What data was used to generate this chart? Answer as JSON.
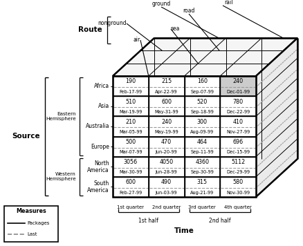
{
  "cell_data": [
    [
      [
        "190",
        "Feb-17-99"
      ],
      [
        "215",
        "Apr-22-99"
      ],
      [
        "160",
        "Sep-07-99"
      ],
      [
        "240",
        "Dec-01-99"
      ]
    ],
    [
      [
        "510",
        "Mar-19-99"
      ],
      [
        "600",
        "May-31-99"
      ],
      [
        "520",
        "Sep-18-99"
      ],
      [
        "780",
        "Dec-22-99"
      ]
    ],
    [
      [
        "210",
        "Mar-05-99"
      ],
      [
        "240",
        "May-19-99"
      ],
      [
        "300",
        "Aug-09-99"
      ],
      [
        "410",
        "Nov-27-99"
      ]
    ],
    [
      [
        "500",
        "Mar-07-99"
      ],
      [
        "470",
        "Jun-20-99"
      ],
      [
        "464",
        "Sep-11-99"
      ],
      [
        "696",
        "Dec-15-99"
      ]
    ],
    [
      [
        "3056",
        "Mar-30-99"
      ],
      [
        "4050",
        "Jun-28-99"
      ],
      [
        "4360",
        "Sep-30-99"
      ],
      [
        "5112",
        "Dec-29-99"
      ]
    ],
    [
      [
        "600",
        "Feb-27-99"
      ],
      [
        "490",
        "Jun-03-99"
      ],
      [
        "315",
        "Aug-21-99"
      ],
      [
        "580",
        "Nov-30-99"
      ]
    ]
  ],
  "highlighted_cell": [
    0,
    3
  ],
  "highlight_color": "#cccccc",
  "dashed_color": "#999999",
  "bg_color": "#ffffff"
}
